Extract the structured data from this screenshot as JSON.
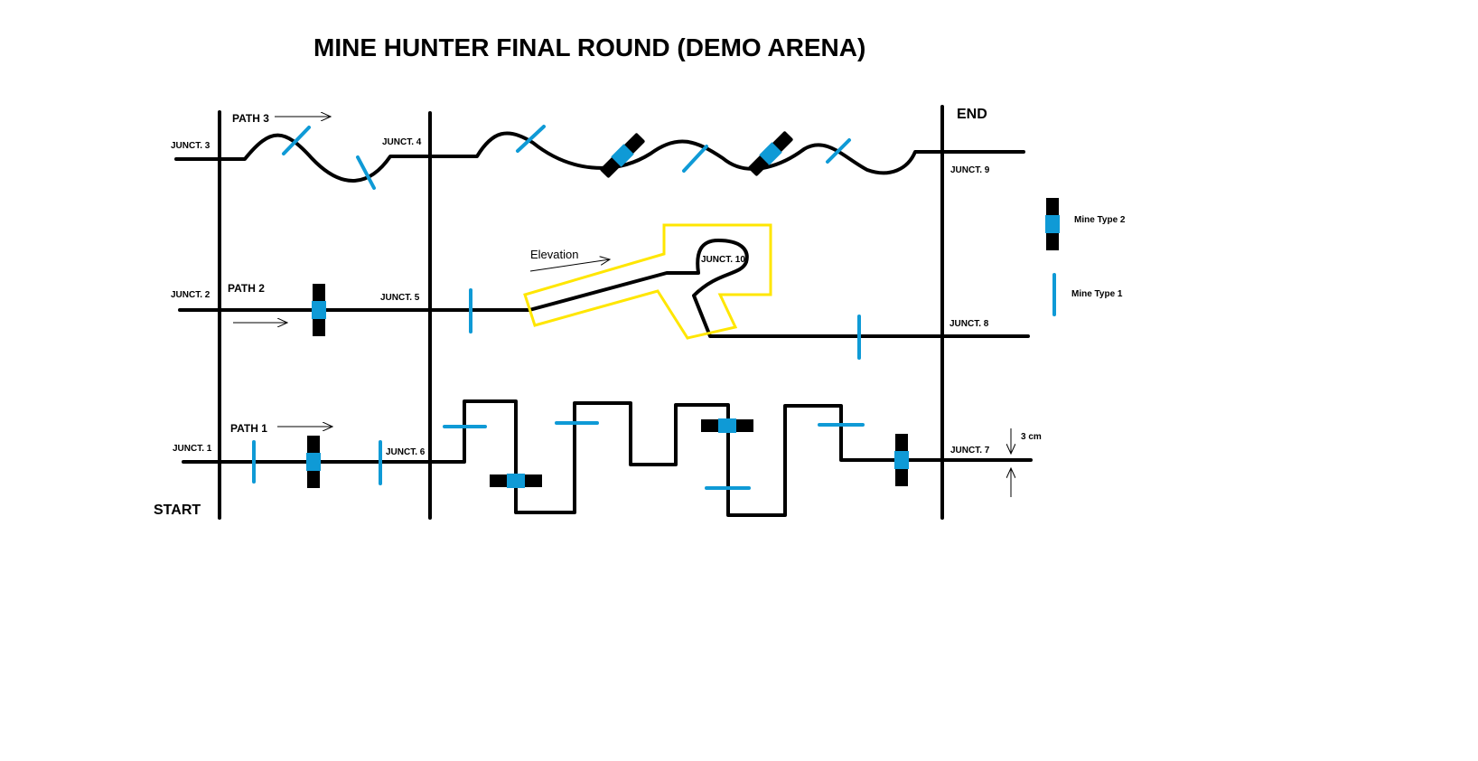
{
  "title": "MINE HUNTER FINAL ROUND (DEMO ARENA)",
  "labels": {
    "start": "START",
    "end": "END",
    "path1": "PATH 1",
    "path2": "PATH 2",
    "path3": "PATH 3",
    "elevation": "Elevation",
    "dimension": "3 cm"
  },
  "junctions": {
    "j1": "JUNCT. 1",
    "j2": "JUNCT. 2",
    "j3": "JUNCT. 3",
    "j4": "JUNCT. 4",
    "j5": "JUNCT. 5",
    "j6": "JUNCT. 6",
    "j7": "JUNCT. 7",
    "j8": "JUNCT. 8",
    "j9": "JUNCT. 9",
    "j10": "JUNCT. 10"
  },
  "legend": {
    "mine_type_2": "Mine Type 2",
    "mine_type_1": "Mine Type 1"
  },
  "colors": {
    "track": "#000000",
    "mine": "#0f9ad6",
    "elevation_outline": "#ffe600"
  }
}
